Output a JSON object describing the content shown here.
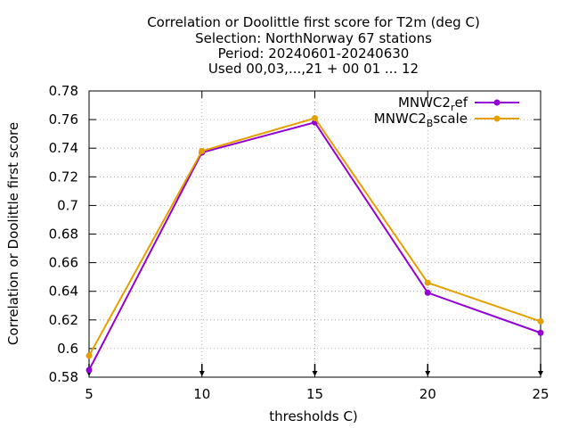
{
  "chart_data": {
    "type": "line",
    "title_lines": [
      "Correlation or Doolittle first score  for T2m (deg C)",
      "Selection: NorthNorway     67 stations",
      "Period: 20240601-20240630",
      "Used 00,03,...,21 + 00 01 ... 12"
    ],
    "xlabel": "thresholds C)",
    "ylabel": "Correlation or Doolittle first score",
    "x": [
      5,
      10,
      15,
      20,
      25
    ],
    "xlim": [
      5,
      25
    ],
    "ylim": [
      0.58,
      0.78
    ],
    "xticks": [
      "5",
      "10",
      "15",
      "20",
      "25"
    ],
    "yticks": [
      "0.58",
      "0.6",
      "0.62",
      "0.64",
      "0.66",
      "0.68",
      "0.7",
      "0.72",
      "0.74",
      "0.76",
      "0.78"
    ],
    "grid": true,
    "legend_position": "top-right",
    "series": [
      {
        "name_main": "MNWC2",
        "name_sub": "r",
        "name_tail": "ef",
        "color": "#9400d3",
        "values": [
          0.585,
          0.737,
          0.758,
          0.639,
          0.611
        ]
      },
      {
        "name_main": "MNWC2",
        "name_sub": "B",
        "name_tail": "scale",
        "color": "#e69f00",
        "values": [
          0.595,
          0.738,
          0.761,
          0.646,
          0.619
        ]
      }
    ]
  }
}
